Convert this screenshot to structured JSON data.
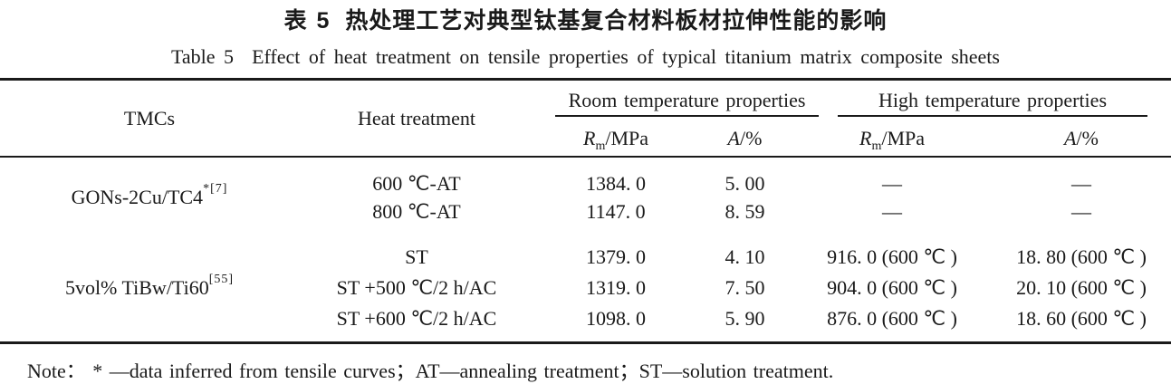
{
  "caption_cn": {
    "label": "表 5",
    "text": "热处理工艺对典型钛基复合材料板材拉伸性能的影响"
  },
  "caption_en": {
    "label": "Table 5",
    "text": "Effect of heat treatment on tensile properties of typical titanium matrix composite sheets"
  },
  "header": {
    "tmcs": "TMCs",
    "heat_treatment": "Heat treatment",
    "room_group": "Room temperature properties",
    "high_group": "High temperature properties",
    "rm_symbol": "R",
    "rm_sub": "m",
    "rm_unit": "/MPa",
    "a_symbol": "A",
    "a_unit": "/%"
  },
  "groups": [
    {
      "material": "GONs-2Cu/TC4",
      "material_sup": "*[7]",
      "rows": [
        {
          "treatment": "600 ℃-AT",
          "rm_rt": "1384. 0",
          "a_rt": "5. 00",
          "rm_ht": "—",
          "a_ht": "—"
        },
        {
          "treatment": "800 ℃-AT",
          "rm_rt": "1147. 0",
          "a_rt": "8. 59",
          "rm_ht": "—",
          "a_ht": "—"
        }
      ]
    },
    {
      "material": "5vol% TiBw/Ti60",
      "material_sup": "[55]",
      "rows": [
        {
          "treatment": "ST",
          "rm_rt": "1379. 0",
          "a_rt": "4. 10",
          "rm_ht": "916. 0 (600 ℃ )",
          "a_ht": "18. 80 (600 ℃ )"
        },
        {
          "treatment": "ST +500 ℃/2 h/AC",
          "rm_rt": "1319. 0",
          "a_rt": "7. 50",
          "rm_ht": "904. 0 (600 ℃ )",
          "a_ht": "20. 10 (600 ℃ )"
        },
        {
          "treatment": "ST +600 ℃/2 h/AC",
          "rm_rt": "1098. 0",
          "a_rt": "5. 90",
          "rm_ht": "876. 0 (600 ℃ )",
          "a_ht": "18. 60 (600 ℃ )"
        }
      ]
    }
  ],
  "note": "Note： * —data inferred from tensile curves；AT—annealing treatment；ST—solution treatment.",
  "colors": {
    "text": "#1a1a1a",
    "rule": "#1a1a1a",
    "background": "#ffffff"
  }
}
